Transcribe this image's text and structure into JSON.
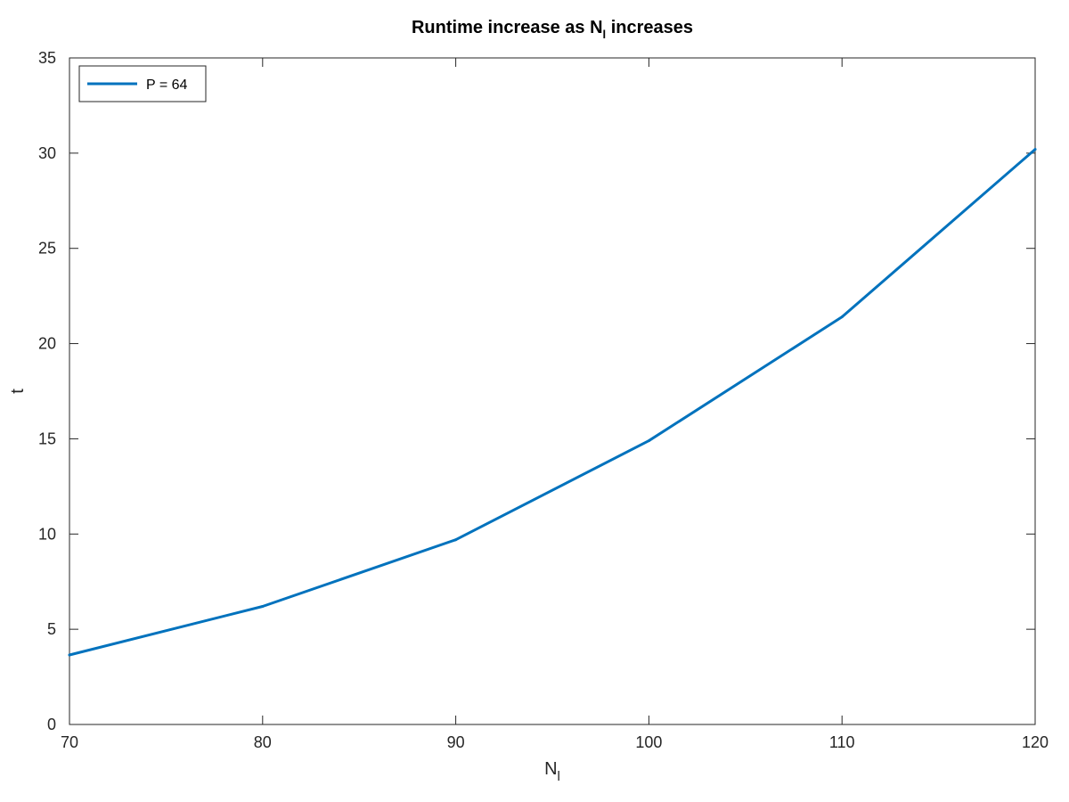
{
  "chart_data": {
    "type": "line",
    "title": {
      "prefix": "Runtime increase as N",
      "subscript": "l",
      "suffix": " increases"
    },
    "xlabel": {
      "base": "N",
      "subscript": "l"
    },
    "ylabel": "t",
    "xlim": [
      70,
      120
    ],
    "ylim": [
      0,
      35
    ],
    "xticks": [
      70,
      80,
      90,
      100,
      110,
      120
    ],
    "yticks": [
      0,
      5,
      10,
      15,
      20,
      25,
      30,
      35
    ],
    "xtick_labels": [
      "70",
      "80",
      "90",
      "100",
      "110",
      "120"
    ],
    "ytick_labels": [
      "0",
      "5",
      "10",
      "15",
      "20",
      "25",
      "30",
      "35"
    ],
    "grid": false,
    "legend": {
      "placement": "top-left",
      "entries": [
        "P = 64"
      ]
    },
    "series": [
      {
        "name": "P = 64",
        "color": "#0072bd",
        "x": [
          70,
          80,
          90,
          100,
          110,
          120
        ],
        "y": [
          3.65,
          6.2,
          9.7,
          14.9,
          21.4,
          30.2
        ]
      }
    ]
  }
}
